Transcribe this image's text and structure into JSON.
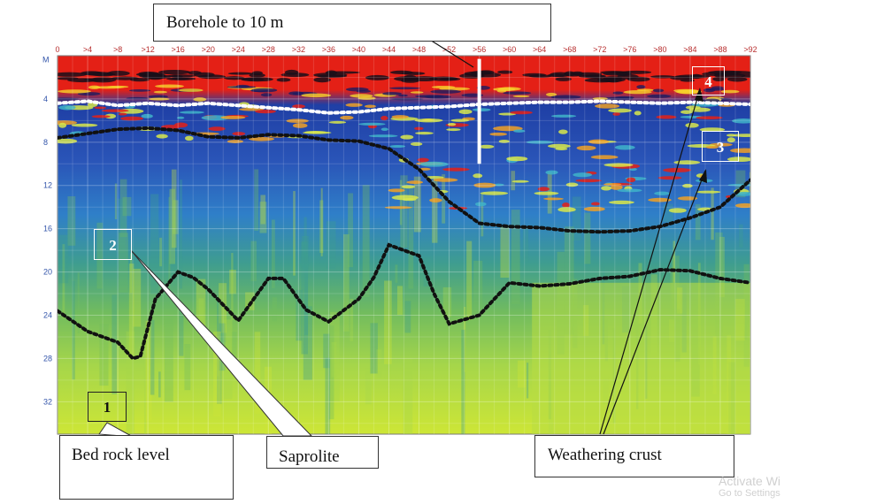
{
  "chart_data": {
    "type": "heatmap",
    "title": "",
    "x_unit_label": "",
    "y_unit_label": "M",
    "x_ticks": [
      "0",
      ">4",
      ">8",
      ">12",
      ">16",
      ">20",
      ">24",
      ">28",
      ">32",
      ">36",
      ">40",
      ">44",
      ">48",
      ">52",
      ">56",
      ">60",
      ">64",
      ">68",
      ">72",
      ">76",
      ">80",
      ">84",
      ">88",
      ">92"
    ],
    "y_ticks": [
      4,
      8,
      12,
      16,
      20,
      24,
      28,
      32
    ],
    "x_range": [
      0,
      92
    ],
    "y_range": [
      0,
      35
    ],
    "y_inverted": true,
    "grid": true,
    "palette": [
      "#cde636",
      "#a6d64a",
      "#72bc5e",
      "#3f9d8f",
      "#2f78c4",
      "#2544a8",
      "#d8e84a",
      "#f0a024",
      "#e42016",
      "#1a0f1a"
    ],
    "boundaries": [
      {
        "name": "",
        "color": "#ffffff",
        "points": [
          [
            0,
            4.4
          ],
          [
            4,
            4.2
          ],
          [
            8,
            4.6
          ],
          [
            12,
            4.4
          ],
          [
            16,
            4.6
          ],
          [
            20,
            4.4
          ],
          [
            24,
            4.6
          ],
          [
            28,
            4.8
          ],
          [
            32,
            5.0
          ],
          [
            36,
            5.3
          ],
          [
            40,
            5.2
          ],
          [
            44,
            4.9
          ],
          [
            48,
            4.8
          ],
          [
            52,
            4.7
          ],
          [
            56,
            4.5
          ],
          [
            60,
            4.4
          ],
          [
            64,
            4.3
          ],
          [
            68,
            4.3
          ],
          [
            72,
            4.2
          ],
          [
            76,
            4.3
          ],
          [
            80,
            4.4
          ],
          [
            84,
            4.3
          ],
          [
            88,
            4.4
          ],
          [
            92,
            4.5
          ]
        ]
      },
      {
        "name": "",
        "color": "#111111",
        "points": [
          [
            0,
            7.6
          ],
          [
            4,
            7.2
          ],
          [
            8,
            6.8
          ],
          [
            12,
            6.7
          ],
          [
            16,
            6.9
          ],
          [
            20,
            7.5
          ],
          [
            24,
            7.6
          ],
          [
            28,
            7.3
          ],
          [
            32,
            7.4
          ],
          [
            36,
            7.8
          ],
          [
            40,
            7.9
          ],
          [
            44,
            8.6
          ],
          [
            48,
            10.5
          ],
          [
            52,
            13.5
          ],
          [
            56,
            15.5
          ],
          [
            60,
            15.8
          ],
          [
            64,
            15.9
          ],
          [
            68,
            16.2
          ],
          [
            72,
            16.3
          ],
          [
            76,
            16.2
          ],
          [
            80,
            15.8
          ],
          [
            84,
            15.0
          ],
          [
            88,
            14.0
          ],
          [
            92,
            11.5
          ]
        ]
      },
      {
        "name": "",
        "color": "#111111",
        "points": [
          [
            0,
            23.6
          ],
          [
            4,
            25.5
          ],
          [
            8,
            26.5
          ],
          [
            10,
            28.0
          ],
          [
            11,
            27.8
          ],
          [
            13,
            22.5
          ],
          [
            16,
            20.0
          ],
          [
            18,
            20.5
          ],
          [
            20,
            21.6
          ],
          [
            24,
            24.5
          ],
          [
            28,
            20.6
          ],
          [
            30,
            20.6
          ],
          [
            33,
            23.5
          ],
          [
            36,
            24.6
          ],
          [
            40,
            22.5
          ],
          [
            42,
            20.5
          ],
          [
            44,
            17.5
          ],
          [
            48,
            18.5
          ],
          [
            50,
            22.0
          ],
          [
            52,
            24.8
          ],
          [
            56,
            24.0
          ],
          [
            60,
            21.0
          ],
          [
            64,
            21.3
          ],
          [
            68,
            21.1
          ],
          [
            72,
            20.6
          ],
          [
            76,
            20.4
          ],
          [
            80,
            19.8
          ],
          [
            84,
            19.9
          ],
          [
            88,
            20.6
          ],
          [
            92,
            21.0
          ]
        ]
      }
    ],
    "borehole": {
      "x": 56,
      "depth_top": 0.3,
      "depth_bottom": 10.0
    }
  },
  "callouts": [
    {
      "id": "borehole",
      "text": "Borehole to 10 m"
    },
    {
      "id": "bedrock",
      "text": "Bed rock level"
    },
    {
      "id": "saprolite",
      "text": "Saprolite"
    },
    {
      "id": "crust",
      "text": "Weathering crust"
    }
  ],
  "zones": [
    {
      "id": "zone-1",
      "label": "1"
    },
    {
      "id": "zone-2",
      "label": "2"
    },
    {
      "id": "zone-3",
      "label": "3"
    },
    {
      "id": "zone-4",
      "label": "4"
    }
  ],
  "watermark": {
    "line1": "Activate Wi",
    "line2": "Go to Settings"
  }
}
